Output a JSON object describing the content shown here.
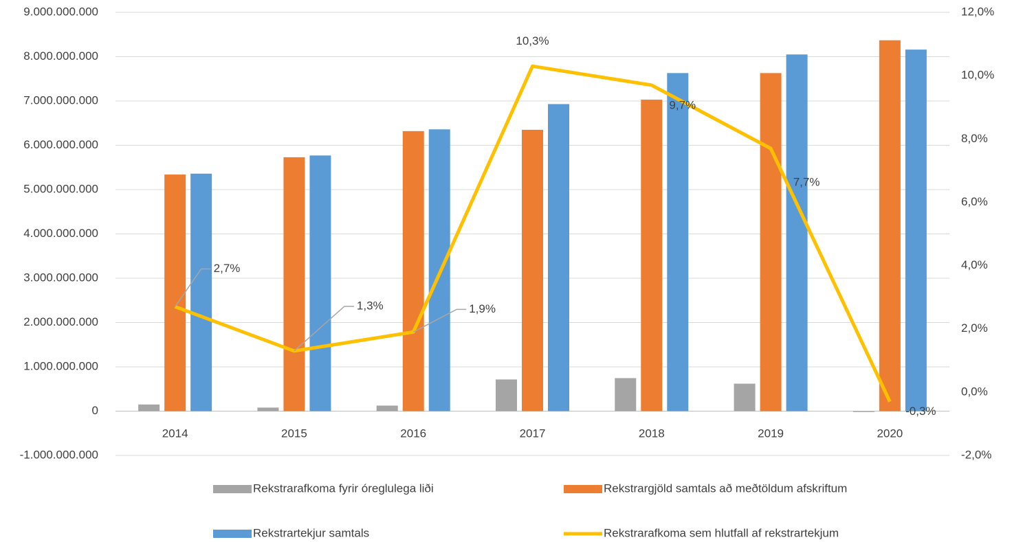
{
  "chart_data": {
    "type": "bar",
    "categories": [
      "2014",
      "2015",
      "2016",
      "2017",
      "2018",
      "2019",
      "2020"
    ],
    "series": [
      {
        "name": "Rekstrarafkoma fyrir óreglulega liði",
        "color": "#a5a5a5",
        "type": "bar",
        "values": [
          150000000,
          80000000,
          125000000,
          715000000,
          745000000,
          620000000,
          -20000000
        ]
      },
      {
        "name": "Rekstrargjöld samtals að meðtöldum afskriftum",
        "color": "#ed7d31",
        "type": "bar",
        "values": [
          5340000000,
          5730000000,
          6320000000,
          6350000000,
          7030000000,
          7630000000,
          8370000000
        ]
      },
      {
        "name": "Rekstrartekjur samtals",
        "color": "#5b9bd5",
        "type": "bar",
        "values": [
          5360000000,
          5770000000,
          6360000000,
          6930000000,
          7630000000,
          8050000000,
          8160000000
        ]
      },
      {
        "name": "Rekstrarafkoma sem hlutfall af rekstrartekjum",
        "color": "#ffc000",
        "type": "line",
        "axis": "y2",
        "values": [
          2.7,
          1.3,
          1.9,
          10.3,
          9.7,
          7.7,
          -0.3
        ],
        "value_labels": [
          "2,7%",
          "1,3%",
          "1,9%",
          "10,3%",
          "9,7%",
          "7,7%",
          "-0,3%"
        ]
      }
    ],
    "ylim": [
      -1000000000,
      9000000000
    ],
    "yticks": [
      {
        "value": -1000000000,
        "label": "-1.000.000.000"
      },
      0,
      {
        "value": 1000000000,
        "label": "1.000.000.000"
      },
      {
        "value": 2000000000,
        "label": "2.000.000.000"
      },
      {
        "value": 3000000000,
        "label": "3.000.000.000"
      },
      {
        "value": 4000000000,
        "label": "4.000.000.000"
      },
      {
        "value": 5000000000,
        "label": "5.000.000.000"
      },
      {
        "value": 6000000000,
        "label": "6.000.000.000"
      },
      {
        "value": 7000000000,
        "label": "7.000.000.000"
      },
      {
        "value": 8000000000,
        "label": "8.000.000.000"
      },
      {
        "value": 9000000000,
        "label": "9.000.000.000"
      }
    ],
    "y2lim": [
      -2,
      12
    ],
    "y2ticks": [
      {
        "value": -2,
        "label": "-2,0%"
      },
      {
        "value": 0,
        "label": "0,0%"
      },
      {
        "value": 2,
        "label": "2,0%"
      },
      {
        "value": 4,
        "label": "4,0%"
      },
      {
        "value": 6,
        "label": "6,0%"
      },
      {
        "value": 8,
        "label": "8,0%"
      },
      {
        "value": 10,
        "label": "10,0%"
      },
      {
        "value": 12,
        "label": "12,0%"
      }
    ],
    "grid": true,
    "legend": "bottom"
  }
}
